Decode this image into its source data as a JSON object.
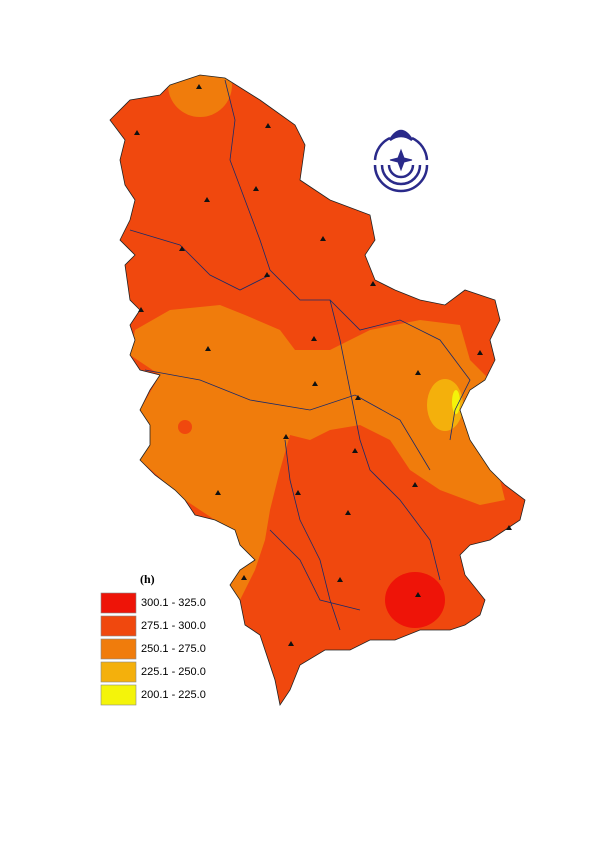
{
  "legend": {
    "title": "(h)",
    "items": [
      {
        "label": "300.1 - 325.0",
        "color": "#ee1408"
      },
      {
        "label": "275.1 - 300.0",
        "color": "#f0480e"
      },
      {
        "label": "250.1 - 275.0",
        "color": "#f07c0c"
      },
      {
        "label": "225.1 - 250.0",
        "color": "#f4b00c"
      },
      {
        "label": "200.1 - 225.0",
        "color": "#f4f40a"
      }
    ]
  }
}
